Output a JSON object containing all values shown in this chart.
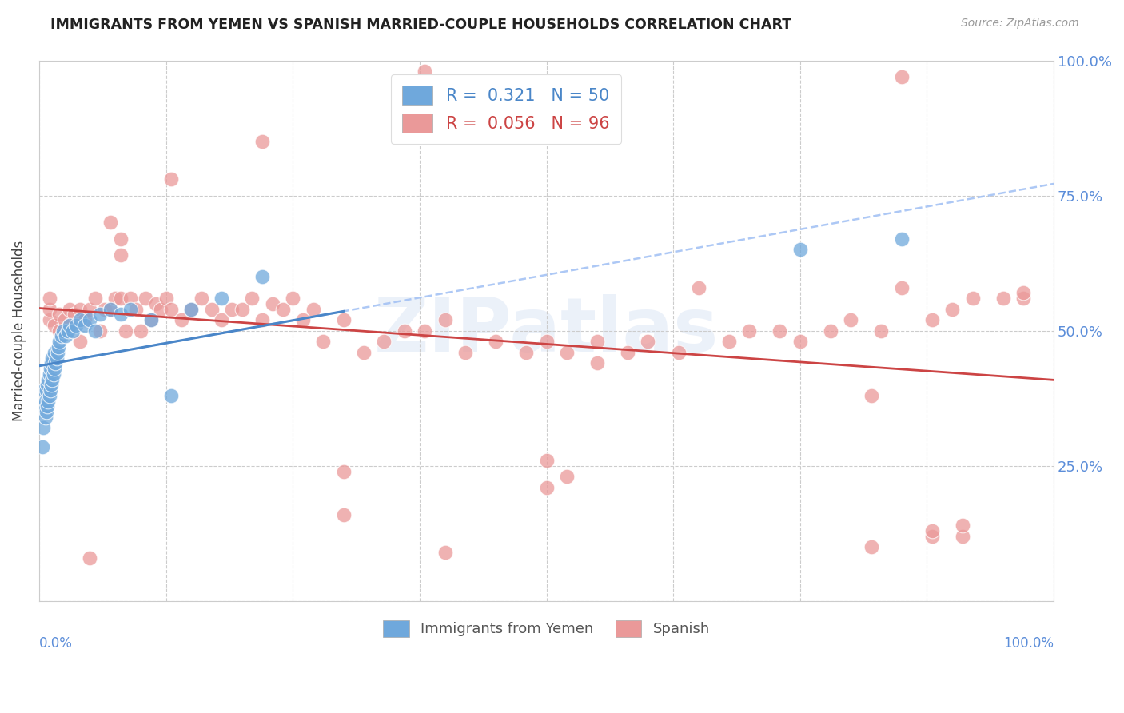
{
  "title": "IMMIGRANTS FROM YEMEN VS SPANISH MARRIED-COUPLE HOUSEHOLDS CORRELATION CHART",
  "source": "Source: ZipAtlas.com",
  "ylabel": "Married-couple Households",
  "legend_blue_r": "0.321",
  "legend_blue_n": "50",
  "legend_pink_r": "0.056",
  "legend_pink_n": "96",
  "watermark": "ZIPatlas",
  "blue_color": "#6fa8dc",
  "pink_color": "#ea9999",
  "blue_line_color": "#4a86c8",
  "pink_line_color": "#cc4444",
  "blue_dash_color": "#a4c2f4",
  "grid_color": "#cccccc",
  "title_color": "#222222",
  "right_tick_color": "#5b8dd9",
  "background_color": "#ffffff",
  "blue_x": [
    0.003,
    0.004,
    0.005,
    0.005,
    0.006,
    0.006,
    0.007,
    0.007,
    0.008,
    0.008,
    0.009,
    0.009,
    0.01,
    0.01,
    0.011,
    0.011,
    0.012,
    0.012,
    0.013,
    0.013,
    0.014,
    0.015,
    0.015,
    0.016,
    0.017,
    0.018,
    0.019,
    0.02,
    0.022,
    0.024,
    0.026,
    0.028,
    0.03,
    0.033,
    0.036,
    0.04,
    0.045,
    0.05,
    0.055,
    0.06,
    0.07,
    0.08,
    0.09,
    0.11,
    0.13,
    0.15,
    0.18,
    0.22,
    0.75,
    0.85
  ],
  "blue_y": [
    0.285,
    0.32,
    0.36,
    0.39,
    0.34,
    0.37,
    0.35,
    0.39,
    0.36,
    0.4,
    0.37,
    0.41,
    0.38,
    0.42,
    0.39,
    0.43,
    0.4,
    0.44,
    0.41,
    0.45,
    0.42,
    0.43,
    0.46,
    0.44,
    0.45,
    0.46,
    0.47,
    0.48,
    0.49,
    0.5,
    0.49,
    0.5,
    0.51,
    0.5,
    0.51,
    0.52,
    0.51,
    0.52,
    0.5,
    0.53,
    0.54,
    0.53,
    0.54,
    0.52,
    0.38,
    0.54,
    0.56,
    0.6,
    0.65,
    0.67
  ],
  "pink_x": [
    0.01,
    0.01,
    0.01,
    0.015,
    0.02,
    0.02,
    0.025,
    0.03,
    0.03,
    0.035,
    0.04,
    0.04,
    0.045,
    0.05,
    0.055,
    0.06,
    0.065,
    0.07,
    0.075,
    0.08,
    0.085,
    0.09,
    0.095,
    0.1,
    0.105,
    0.11,
    0.115,
    0.12,
    0.125,
    0.13,
    0.14,
    0.15,
    0.16,
    0.17,
    0.18,
    0.19,
    0.2,
    0.21,
    0.22,
    0.23,
    0.24,
    0.25,
    0.26,
    0.27,
    0.28,
    0.3,
    0.32,
    0.34,
    0.36,
    0.38,
    0.4,
    0.42,
    0.45,
    0.48,
    0.5,
    0.52,
    0.55,
    0.58,
    0.6,
    0.63,
    0.65,
    0.68,
    0.7,
    0.73,
    0.75,
    0.78,
    0.8,
    0.83,
    0.85,
    0.88,
    0.9,
    0.92,
    0.95,
    0.97,
    0.38,
    0.85,
    0.07,
    0.13,
    0.22,
    0.08,
    0.3,
    0.5,
    0.52,
    0.82,
    0.88,
    0.91,
    0.4,
    0.3,
    0.5,
    0.82,
    0.88,
    0.91,
    0.05,
    0.08,
    0.55,
    0.97
  ],
  "pink_y": [
    0.52,
    0.54,
    0.56,
    0.51,
    0.5,
    0.53,
    0.52,
    0.51,
    0.54,
    0.53,
    0.48,
    0.54,
    0.52,
    0.54,
    0.56,
    0.5,
    0.54,
    0.54,
    0.56,
    0.56,
    0.5,
    0.56,
    0.54,
    0.5,
    0.56,
    0.52,
    0.55,
    0.54,
    0.56,
    0.54,
    0.52,
    0.54,
    0.56,
    0.54,
    0.52,
    0.54,
    0.54,
    0.56,
    0.52,
    0.55,
    0.54,
    0.56,
    0.52,
    0.54,
    0.48,
    0.52,
    0.46,
    0.48,
    0.5,
    0.5,
    0.52,
    0.46,
    0.48,
    0.46,
    0.48,
    0.46,
    0.48,
    0.46,
    0.48,
    0.46,
    0.58,
    0.48,
    0.5,
    0.5,
    0.48,
    0.5,
    0.52,
    0.5,
    0.58,
    0.52,
    0.54,
    0.56,
    0.56,
    0.56,
    0.98,
    0.97,
    0.7,
    0.78,
    0.85,
    0.64,
    0.16,
    0.21,
    0.23,
    0.1,
    0.12,
    0.12,
    0.09,
    0.24,
    0.26,
    0.38,
    0.13,
    0.14,
    0.08,
    0.67,
    0.44,
    0.57
  ]
}
